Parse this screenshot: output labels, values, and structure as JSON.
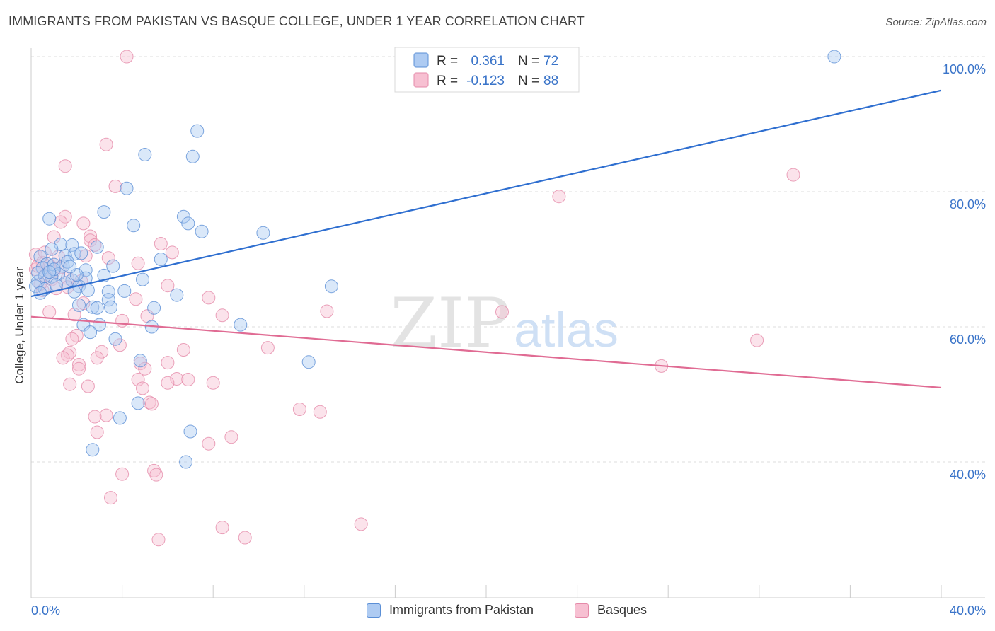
{
  "header": {
    "title": "IMMIGRANTS FROM PAKISTAN VS BASQUE COLLEGE, UNDER 1 YEAR CORRELATION CHART",
    "source": "Source: ZipAtlas.com"
  },
  "watermark": {
    "zip": "ZIP",
    "atlas": "atlas"
  },
  "colors": {
    "blue_fill": "#aecbf2",
    "blue_stroke": "#5b8fd6",
    "blue_line": "#2f6fd0",
    "pink_fill": "#f7c0d2",
    "pink_stroke": "#e58aa9",
    "pink_line": "#e06b93",
    "tick_text": "#3a74c9",
    "grid": "#dcdcdc"
  },
  "chart_data": {
    "type": "scatter",
    "title": "IMMIGRANTS FROM PAKISTAN VS BASQUE COLLEGE, UNDER 1 YEAR CORRELATION CHART",
    "xlabel": "",
    "ylabel": "College, Under 1 year",
    "xlim": [
      0,
      40
    ],
    "ylim": [
      22,
      102
    ],
    "x_tick_labels": [
      "0.0%",
      "40.0%"
    ],
    "y_ticks": [
      {
        "value": 40,
        "label": "40.0%"
      },
      {
        "value": 60,
        "label": "60.0%"
      },
      {
        "value": 80,
        "label": "80.0%"
      },
      {
        "value": 100,
        "label": "100.0%"
      }
    ],
    "legend": {
      "position": "top-center",
      "entries": [
        {
          "r_label": "R =",
          "r_value": "0.361",
          "n_label": "N =",
          "n_value": "72"
        },
        {
          "r_label": "R =",
          "r_value": "-0.123",
          "n_label": "N =",
          "n_value": "88"
        }
      ]
    },
    "series": [
      {
        "name": "Immigrants from Pakistan",
        "color": "blue",
        "trend": {
          "x": [
            0,
            40
          ],
          "y": [
            64.5,
            95.0
          ]
        },
        "points": [
          [
            35.3,
            100.0
          ],
          [
            7.3,
            89.0
          ],
          [
            5.0,
            85.5
          ],
          [
            7.1,
            85.2
          ],
          [
            4.2,
            80.5
          ],
          [
            3.2,
            77.0
          ],
          [
            0.8,
            76.0
          ],
          [
            6.7,
            76.3
          ],
          [
            6.9,
            75.3
          ],
          [
            4.5,
            75.0
          ],
          [
            7.5,
            74.1
          ],
          [
            10.2,
            73.9
          ],
          [
            1.3,
            72.2
          ],
          [
            1.8,
            72.1
          ],
          [
            2.9,
            71.8
          ],
          [
            0.9,
            71.5
          ],
          [
            1.9,
            70.8
          ],
          [
            1.5,
            70.5
          ],
          [
            0.4,
            70.4
          ],
          [
            5.7,
            70.0
          ],
          [
            0.7,
            69.3
          ],
          [
            1.0,
            69.2
          ],
          [
            1.4,
            69.0
          ],
          [
            3.6,
            69.0
          ],
          [
            0.5,
            68.7
          ],
          [
            2.4,
            68.4
          ],
          [
            1.2,
            67.8
          ],
          [
            3.2,
            67.6
          ],
          [
            0.9,
            67.4
          ],
          [
            2.4,
            67.2
          ],
          [
            4.9,
            67.0
          ],
          [
            1.8,
            66.9
          ],
          [
            0.3,
            66.7
          ],
          [
            1.5,
            66.5
          ],
          [
            2.1,
            66.0
          ],
          [
            0.6,
            65.6
          ],
          [
            2.5,
            65.4
          ],
          [
            1.9,
            65.2
          ],
          [
            3.4,
            65.2
          ],
          [
            4.1,
            65.3
          ],
          [
            6.4,
            64.7
          ],
          [
            13.2,
            66.0
          ],
          [
            3.4,
            64.0
          ],
          [
            2.1,
            63.2
          ],
          [
            2.7,
            62.9
          ],
          [
            2.9,
            62.8
          ],
          [
            3.5,
            62.9
          ],
          [
            5.4,
            62.8
          ],
          [
            2.3,
            60.3
          ],
          [
            3.0,
            60.3
          ],
          [
            5.3,
            60.0
          ],
          [
            9.2,
            60.3
          ],
          [
            2.6,
            59.2
          ],
          [
            3.7,
            58.2
          ],
          [
            4.8,
            55.0
          ],
          [
            12.2,
            54.8
          ],
          [
            4.7,
            48.7
          ],
          [
            3.9,
            46.5
          ],
          [
            7.0,
            44.5
          ],
          [
            2.7,
            41.8
          ],
          [
            6.8,
            40.0
          ],
          [
            0.2,
            66.0
          ],
          [
            0.6,
            67.5
          ],
          [
            1.0,
            68.5
          ],
          [
            0.3,
            68.0
          ],
          [
            1.6,
            69.6
          ],
          [
            2.2,
            70.9
          ],
          [
            0.8,
            68.1
          ],
          [
            0.4,
            65.0
          ],
          [
            1.1,
            66.2
          ],
          [
            2.0,
            67.7
          ],
          [
            1.7,
            68.9
          ]
        ]
      },
      {
        "name": "Basques",
        "color": "pink",
        "trend": {
          "x": [
            0,
            40
          ],
          "y": [
            61.5,
            51.0
          ]
        },
        "points": [
          [
            4.2,
            100.0
          ],
          [
            3.3,
            87.0
          ],
          [
            1.5,
            83.8
          ],
          [
            3.7,
            80.8
          ],
          [
            23.2,
            79.3
          ],
          [
            33.5,
            82.5
          ],
          [
            1.5,
            76.3
          ],
          [
            1.3,
            75.5
          ],
          [
            2.3,
            75.3
          ],
          [
            1.0,
            73.3
          ],
          [
            2.6,
            73.4
          ],
          [
            2.6,
            72.8
          ],
          [
            5.7,
            72.3
          ],
          [
            6.2,
            71.0
          ],
          [
            0.2,
            70.7
          ],
          [
            1.2,
            70.4
          ],
          [
            2.4,
            70.5
          ],
          [
            3.4,
            70.2
          ],
          [
            0.5,
            69.5
          ],
          [
            4.7,
            69.4
          ],
          [
            0.8,
            69.0
          ],
          [
            0.2,
            68.5
          ],
          [
            1.0,
            68.2
          ],
          [
            0.6,
            67.6
          ],
          [
            1.6,
            67.2
          ],
          [
            2.2,
            66.8
          ],
          [
            6.0,
            66.1
          ],
          [
            1.6,
            65.9
          ],
          [
            0.5,
            65.4
          ],
          [
            7.8,
            64.3
          ],
          [
            4.6,
            64.1
          ],
          [
            2.3,
            63.5
          ],
          [
            13.0,
            62.3
          ],
          [
            20.7,
            62.2
          ],
          [
            0.8,
            62.2
          ],
          [
            1.9,
            61.8
          ],
          [
            5.1,
            61.6
          ],
          [
            8.4,
            61.7
          ],
          [
            4.0,
            60.9
          ],
          [
            2.0,
            58.7
          ],
          [
            1.8,
            58.2
          ],
          [
            31.9,
            58.0
          ],
          [
            3.9,
            57.3
          ],
          [
            10.4,
            56.9
          ],
          [
            6.7,
            56.6
          ],
          [
            3.1,
            56.3
          ],
          [
            1.7,
            56.2
          ],
          [
            1.6,
            55.8
          ],
          [
            2.9,
            55.4
          ],
          [
            1.4,
            55.4
          ],
          [
            4.8,
            54.6
          ],
          [
            6.0,
            54.7
          ],
          [
            2.1,
            54.4
          ],
          [
            27.7,
            54.2
          ],
          [
            2.1,
            53.8
          ],
          [
            5.0,
            53.8
          ],
          [
            4.7,
            52.2
          ],
          [
            6.4,
            52.3
          ],
          [
            6.9,
            52.2
          ],
          [
            6.0,
            51.7
          ],
          [
            8.0,
            51.7
          ],
          [
            1.7,
            51.5
          ],
          [
            2.5,
            51.2
          ],
          [
            4.9,
            50.9
          ],
          [
            5.2,
            48.8
          ],
          [
            5.3,
            48.6
          ],
          [
            11.8,
            47.8
          ],
          [
            12.7,
            47.4
          ],
          [
            3.3,
            46.9
          ],
          [
            2.8,
            46.7
          ],
          [
            2.9,
            44.4
          ],
          [
            8.8,
            43.7
          ],
          [
            7.8,
            42.7
          ],
          [
            5.4,
            38.7
          ],
          [
            5.5,
            38.1
          ],
          [
            4.0,
            38.2
          ],
          [
            3.5,
            34.7
          ],
          [
            14.5,
            30.8
          ],
          [
            8.4,
            30.3
          ],
          [
            9.4,
            28.8
          ],
          [
            5.6,
            28.5
          ],
          [
            0.3,
            69.0
          ],
          [
            0.9,
            67.0
          ],
          [
            1.3,
            68.8
          ],
          [
            0.4,
            66.3
          ],
          [
            2.8,
            72.1
          ],
          [
            0.6,
            71.0
          ],
          [
            1.1,
            65.7
          ]
        ]
      }
    ]
  },
  "bottom_legend": [
    {
      "label": "Immigrants from Pakistan"
    },
    {
      "label": "Basques"
    }
  ]
}
